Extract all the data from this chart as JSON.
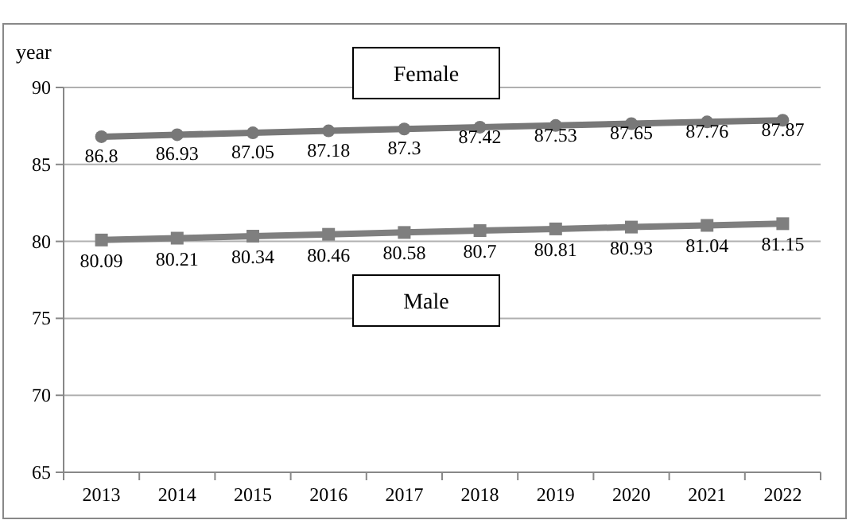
{
  "chart_data": {
    "type": "line",
    "ylabel": "year",
    "categories": [
      "2013",
      "2014",
      "2015",
      "2016",
      "2017",
      "2018",
      "2019",
      "2020",
      "2021",
      "2022"
    ],
    "series": [
      {
        "name": "Female",
        "color": "#787878",
        "marker": "circle",
        "values": [
          86.8,
          86.93,
          87.05,
          87.18,
          87.3,
          87.42,
          87.53,
          87.65,
          87.76,
          87.87
        ]
      },
      {
        "name": "Male",
        "color": "#7f7f7f",
        "marker": "square",
        "values": [
          80.09,
          80.21,
          80.34,
          80.46,
          80.58,
          80.7,
          80.81,
          80.93,
          81.04,
          81.15
        ]
      }
    ],
    "ylim": [
      65,
      90
    ],
    "yticks": [
      65,
      70,
      75,
      80,
      85,
      90
    ],
    "grid": "y",
    "data_labels": true,
    "line_style": "solid"
  }
}
